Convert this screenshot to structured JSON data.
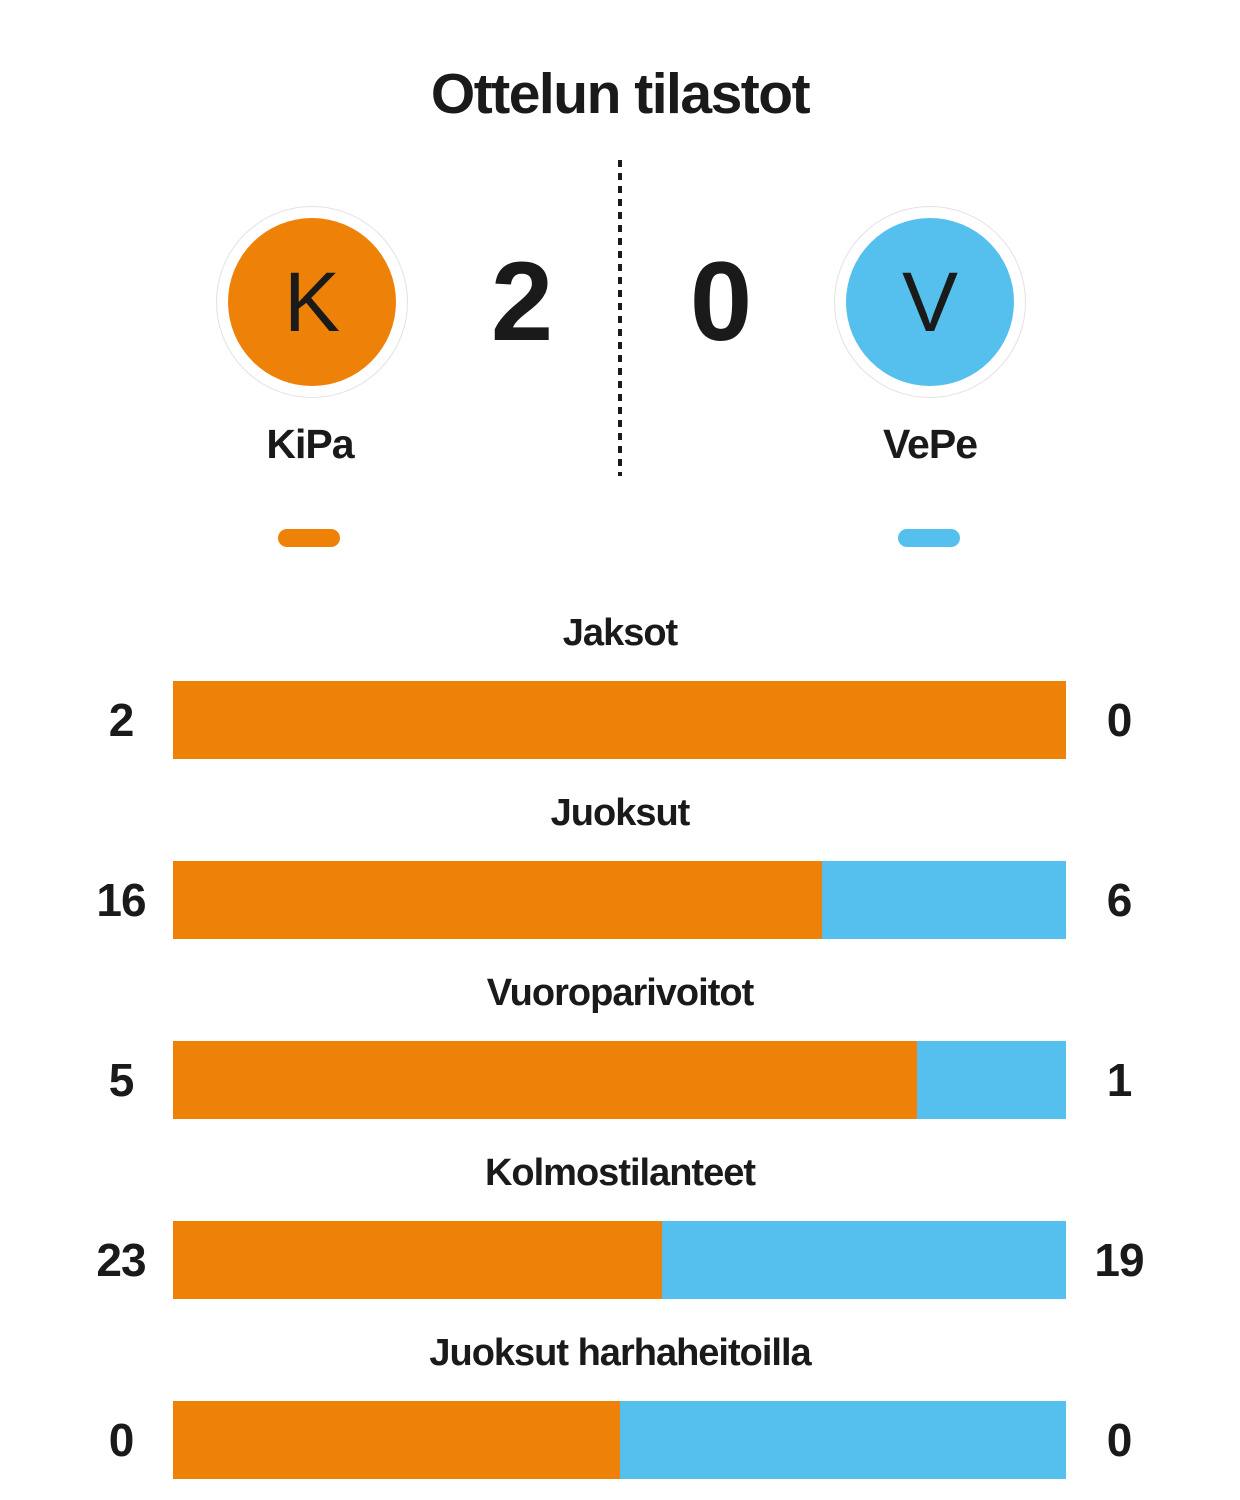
{
  "title": "Ottelun tilastot",
  "colors": {
    "home_accent": "#ee8208",
    "away_accent": "#55c0ee",
    "text": "#1a1a1a",
    "badge_ring": "#e2e2e6"
  },
  "scoreboard": {
    "home": {
      "name": "KiPa",
      "initial": "K",
      "score": "2"
    },
    "away": {
      "name": "VePe",
      "initial": "V",
      "score": "0"
    }
  },
  "chart_data": {
    "type": "bar",
    "subtype": "horizontal-stacked-proportional",
    "title": "Ottelun tilastot",
    "categories": [
      "Jaksot",
      "Juoksut",
      "Vuoroparivoitot",
      "Kolmostilanteet",
      "Juoksut harhaheitoilla"
    ],
    "series": [
      {
        "name": "KiPa",
        "color": "#ee8208",
        "values": [
          2,
          16,
          5,
          23,
          0
        ]
      },
      {
        "name": "VePe",
        "color": "#55c0ee",
        "values": [
          0,
          6,
          1,
          19,
          0
        ]
      }
    ],
    "legend_position": "top",
    "grid": false,
    "value_labels": "both-ends",
    "note_zero_split": "when both values are 0 the bar is split 50/50"
  }
}
